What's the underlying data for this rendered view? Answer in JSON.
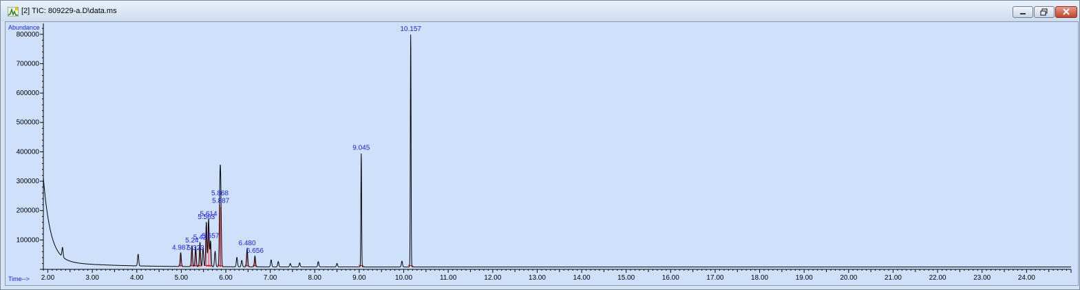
{
  "window": {
    "title": "[2] TIC: 809229-a.D\\data.ms"
  },
  "colors": {
    "plot_background": "#cfe0fb",
    "trace": "#000000",
    "baseline_marks": "#e00000",
    "peak_labels": "#1a1aff"
  },
  "chart_data": {
    "type": "line",
    "xlabel": "Time-->",
    "ylabel": "Abundance",
    "xlim": [
      1.9,
      25.0
    ],
    "ylim": [
      0,
      830000
    ],
    "x_ticks": [
      "2.00",
      "3.00",
      "4.00",
      "5.00",
      "6.00",
      "7.00",
      "8.00",
      "9.00",
      "10.00",
      "11.00",
      "12.00",
      "13.00",
      "14.00",
      "15.00",
      "16.00",
      "17.00",
      "18.00",
      "19.00",
      "20.00",
      "21.00",
      "22.00",
      "23.00",
      "24.00"
    ],
    "y_ticks": [
      "100000",
      "200000",
      "300000",
      "400000",
      "500000",
      "600000",
      "700000",
      "800000"
    ],
    "grid": false,
    "baseline": 8000,
    "background_decay": {
      "start_value": 290000,
      "start_time": 1.9
    },
    "peaks": [
      {
        "rt": 2.33,
        "height": 40000,
        "label": ""
      },
      {
        "rt": 4.03,
        "height": 48000,
        "label": ""
      },
      {
        "rt": 4.987,
        "height": 55000,
        "label": "4.987"
      },
      {
        "rt": 5.24,
        "height": 80000,
        "label": "5.24"
      },
      {
        "rt": 5.323,
        "height": 75000,
        "label": "5.323"
      },
      {
        "rt": 5.42,
        "height": 90000,
        "label": "5.42"
      },
      {
        "rt": 5.49,
        "height": 70000,
        "label": ""
      },
      {
        "rt": 5.563,
        "height": 160000,
        "label": "5.563"
      },
      {
        "rt": 5.614,
        "height": 170000,
        "label": "5.614"
      },
      {
        "rt": 5.657,
        "height": 95000,
        "label": "5.657"
      },
      {
        "rt": 5.76,
        "height": 60000,
        "label": ""
      },
      {
        "rt": 5.868,
        "height": 240000,
        "label": "5.868"
      },
      {
        "rt": 5.887,
        "height": 230000,
        "label": "5.887"
      },
      {
        "rt": 6.25,
        "height": 40000,
        "label": ""
      },
      {
        "rt": 6.36,
        "height": 30000,
        "label": ""
      },
      {
        "rt": 6.48,
        "height": 70000,
        "label": "6.480"
      },
      {
        "rt": 6.656,
        "height": 45000,
        "label": "6.656"
      },
      {
        "rt": 7.02,
        "height": 32000,
        "label": ""
      },
      {
        "rt": 7.18,
        "height": 26000,
        "label": ""
      },
      {
        "rt": 7.45,
        "height": 20000,
        "label": ""
      },
      {
        "rt": 7.66,
        "height": 22000,
        "label": ""
      },
      {
        "rt": 8.08,
        "height": 26000,
        "label": ""
      },
      {
        "rt": 8.5,
        "height": 20000,
        "label": ""
      },
      {
        "rt": 9.045,
        "height": 395000,
        "label": "9.045"
      },
      {
        "rt": 9.96,
        "height": 28000,
        "label": ""
      },
      {
        "rt": 10.157,
        "height": 800000,
        "label": "10.157"
      }
    ]
  }
}
